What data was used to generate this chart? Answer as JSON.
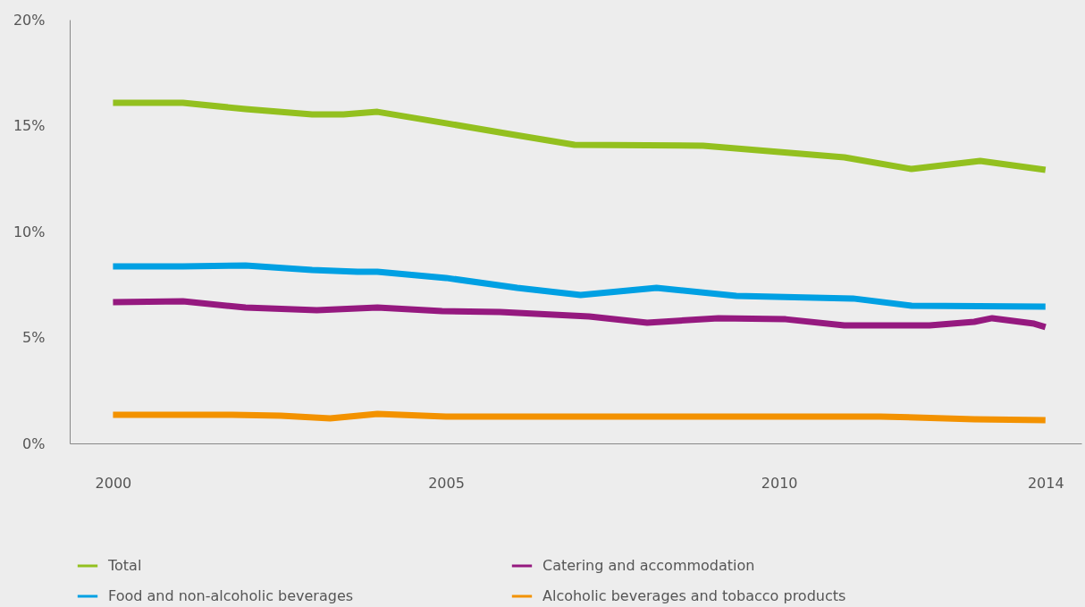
{
  "chart_data": {
    "type": "line",
    "xlim": [
      1999.35,
      2014.54
    ],
    "xticks": [
      2000,
      2005,
      2010,
      2014
    ],
    "ylim": [
      0,
      20
    ],
    "yticks": [
      {
        "value": 0,
        "label": "0%"
      },
      {
        "value": 5,
        "label": "5%"
      },
      {
        "value": 10,
        "label": "10%"
      },
      {
        "value": 15,
        "label": "15%"
      },
      {
        "value": 20,
        "label": "20%"
      }
    ],
    "grid": false,
    "legend": "bottom",
    "line_style": "solid",
    "marker": "none",
    "series": [
      {
        "name": "Total",
        "color": "#93c01f",
        "x": [
          2000,
          2001.05,
          2001.99,
          2002.99,
          2003.46,
          2003.97,
          2005,
          2005.88,
          2006.93,
          2008.86,
          2010.98,
          2011.99,
          2013.02,
          2014
        ],
        "values": [
          16.08,
          16.08,
          15.78,
          15.53,
          15.53,
          15.65,
          15.11,
          14.64,
          14.09,
          14.05,
          13.5,
          12.95,
          13.33,
          12.91
        ]
      },
      {
        "name": "Catering and accommodation",
        "color": "#95197f",
        "x": [
          2000,
          2001.05,
          2001.99,
          2003.06,
          2003.97,
          2004.94,
          2005.81,
          2007.15,
          2008.02,
          2009.09,
          2010.1,
          2010.98,
          2012.26,
          2012.93,
          2013.2,
          2013.83,
          2014
        ],
        "values": [
          6.67,
          6.71,
          6.41,
          6.29,
          6.41,
          6.24,
          6.2,
          5.99,
          5.7,
          5.91,
          5.86,
          5.57,
          5.57,
          5.74,
          5.91,
          5.65,
          5.49
        ]
      },
      {
        "name": "Food and non-alcoholic beverages",
        "color": "#00a0e3",
        "x": [
          2000,
          2001.05,
          2001.99,
          2002.99,
          2003.67,
          2003.97,
          2005,
          2006.07,
          2007.02,
          2008.16,
          2009.36,
          2011.11,
          2011.99,
          2014
        ],
        "values": [
          8.35,
          8.35,
          8.4,
          8.19,
          8.1,
          8.1,
          7.81,
          7.34,
          7.0,
          7.34,
          6.96,
          6.84,
          6.5,
          6.46
        ]
      },
      {
        "name": "Alcoholic beverages and tobacco products",
        "color": "#f39200",
        "x": [
          2000,
          2001.79,
          2002.52,
          2003.26,
          2003.97,
          2005,
          2011.52,
          2012.93,
          2014
        ],
        "values": [
          1.35,
          1.35,
          1.31,
          1.18,
          1.39,
          1.27,
          1.27,
          1.14,
          1.1
        ]
      }
    ]
  }
}
